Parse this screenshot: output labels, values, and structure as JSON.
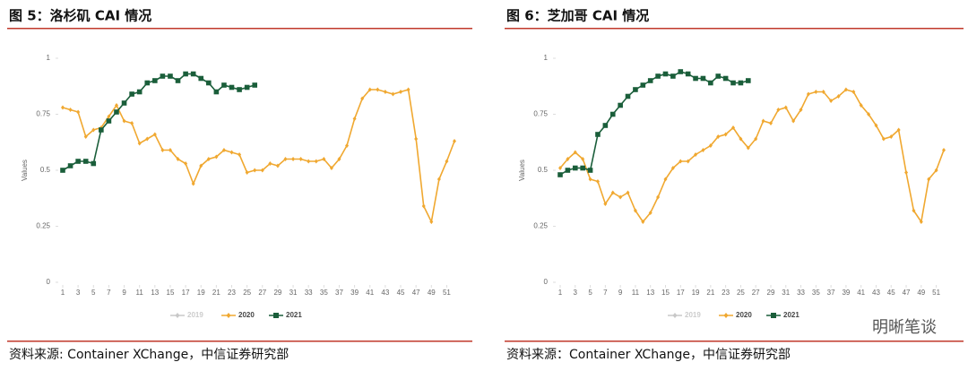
{
  "chart_data": [
    {
      "type": "line",
      "title": "图 5：洛杉矶 CAI 情况",
      "source": "资料来源: Container XChange，中信证券研究部",
      "y_label": "Values",
      "x": [
        1,
        2,
        3,
        4,
        5,
        6,
        7,
        8,
        9,
        10,
        11,
        12,
        13,
        14,
        15,
        16,
        17,
        18,
        19,
        20,
        21,
        22,
        23,
        24,
        25,
        26,
        27,
        28,
        29,
        30,
        31,
        32,
        33,
        34,
        35,
        36,
        37,
        38,
        39,
        40,
        41,
        42,
        43,
        44,
        45,
        46,
        47,
        48,
        49,
        50,
        51,
        52
      ],
      "xlim": [
        1,
        52
      ],
      "xticks": [
        1,
        3,
        5,
        7,
        9,
        11,
        13,
        15,
        17,
        19,
        21,
        23,
        25,
        27,
        29,
        31,
        33,
        35,
        37,
        39,
        41,
        43,
        45,
        47,
        49,
        51
      ],
      "ylim": [
        0,
        1
      ],
      "yticks": [
        0,
        0.25,
        0.5,
        0.75,
        1
      ],
      "series": [
        {
          "name": "2019",
          "color": "#c8c8c8",
          "values": [
            null,
            null,
            null,
            null,
            null,
            null,
            null,
            null,
            null,
            null,
            null,
            null,
            null,
            null,
            null,
            null,
            null,
            null,
            null,
            null,
            null,
            null,
            null,
            null,
            null,
            null,
            null,
            null,
            null,
            null,
            null,
            null,
            null,
            null,
            null,
            null,
            null,
            null,
            null,
            null,
            null,
            null,
            null,
            null,
            null,
            null,
            null,
            null,
            null,
            null,
            null,
            null
          ]
        },
        {
          "name": "2020",
          "color": "#f0a830",
          "values": [
            0.78,
            0.77,
            0.76,
            0.65,
            0.68,
            0.69,
            0.74,
            0.79,
            0.72,
            0.71,
            0.62,
            0.64,
            0.66,
            0.59,
            0.59,
            0.55,
            0.53,
            0.44,
            0.52,
            0.55,
            0.56,
            0.59,
            0.58,
            0.57,
            0.49,
            0.5,
            0.5,
            0.53,
            0.52,
            0.55,
            0.55,
            0.55,
            0.54,
            0.54,
            0.55,
            0.51,
            0.55,
            0.61,
            0.73,
            0.82,
            0.86,
            0.86,
            0.85,
            0.84,
            0.85,
            0.86,
            0.64,
            0.34,
            0.27,
            0.46,
            0.54,
            0.63
          ]
        },
        {
          "name": "2021",
          "color": "#1a5e3a",
          "values": [
            0.5,
            0.52,
            0.54,
            0.54,
            0.53,
            0.68,
            0.72,
            0.76,
            0.8,
            0.84,
            0.85,
            0.89,
            0.9,
            0.92,
            0.92,
            0.9,
            0.93,
            0.93,
            0.91,
            0.89,
            0.85,
            0.88,
            0.87,
            0.86,
            0.87,
            0.88,
            null,
            null,
            null,
            null,
            null,
            null,
            null,
            null,
            null,
            null,
            null,
            null,
            null,
            null,
            null,
            null,
            null,
            null,
            null,
            null,
            null,
            null,
            null,
            null,
            null,
            null
          ]
        }
      ]
    },
    {
      "type": "line",
      "title": "图 6：芝加哥 CAI 情况",
      "source": "资料来源：Container XChange，中信证券研究部",
      "y_label": "Values",
      "x": [
        1,
        2,
        3,
        4,
        5,
        6,
        7,
        8,
        9,
        10,
        11,
        12,
        13,
        14,
        15,
        16,
        17,
        18,
        19,
        20,
        21,
        22,
        23,
        24,
        25,
        26,
        27,
        28,
        29,
        30,
        31,
        32,
        33,
        34,
        35,
        36,
        37,
        38,
        39,
        40,
        41,
        42,
        43,
        44,
        45,
        46,
        47,
        48,
        49,
        50,
        51,
        52
      ],
      "xlim": [
        1,
        52
      ],
      "xticks": [
        1,
        3,
        5,
        7,
        9,
        11,
        13,
        15,
        17,
        19,
        21,
        23,
        25,
        27,
        29,
        31,
        33,
        35,
        37,
        39,
        41,
        43,
        45,
        47,
        49,
        51
      ],
      "ylim": [
        0,
        1
      ],
      "yticks": [
        0,
        0.25,
        0.5,
        0.75,
        1
      ],
      "series": [
        {
          "name": "2019",
          "color": "#c8c8c8",
          "values": [
            null,
            null,
            null,
            null,
            null,
            null,
            null,
            null,
            null,
            null,
            null,
            null,
            null,
            null,
            null,
            null,
            null,
            null,
            null,
            null,
            null,
            null,
            null,
            null,
            null,
            null,
            null,
            null,
            null,
            null,
            null,
            null,
            null,
            null,
            null,
            null,
            null,
            null,
            null,
            null,
            null,
            null,
            null,
            null,
            null,
            null,
            null,
            null,
            null,
            null,
            null,
            null
          ]
        },
        {
          "name": "2020",
          "color": "#f0a830",
          "values": [
            0.51,
            0.55,
            0.58,
            0.55,
            0.46,
            0.45,
            0.35,
            0.4,
            0.38,
            0.4,
            0.32,
            0.27,
            0.31,
            0.38,
            0.46,
            0.51,
            0.54,
            0.54,
            0.57,
            0.59,
            0.61,
            0.65,
            0.66,
            0.69,
            0.64,
            0.6,
            0.64,
            0.72,
            0.71,
            0.77,
            0.78,
            0.72,
            0.77,
            0.84,
            0.85,
            0.85,
            0.81,
            0.83,
            0.86,
            0.85,
            0.79,
            0.75,
            0.7,
            0.64,
            0.65,
            0.68,
            0.49,
            0.32,
            0.27,
            0.46,
            0.5,
            0.59
          ]
        },
        {
          "name": "2021",
          "color": "#1a5e3a",
          "values": [
            0.48,
            0.5,
            0.51,
            0.51,
            0.5,
            0.66,
            0.7,
            0.75,
            0.79,
            0.83,
            0.86,
            0.88,
            0.9,
            0.92,
            0.93,
            0.92,
            0.94,
            0.93,
            0.91,
            0.91,
            0.89,
            0.92,
            0.91,
            0.89,
            0.89,
            0.9,
            null,
            null,
            null,
            null,
            null,
            null,
            null,
            null,
            null,
            null,
            null,
            null,
            null,
            null,
            null,
            null,
            null,
            null,
            null,
            null,
            null,
            null,
            null,
            null,
            null,
            null
          ]
        }
      ]
    }
  ],
  "watermark": "明晰笔谈"
}
